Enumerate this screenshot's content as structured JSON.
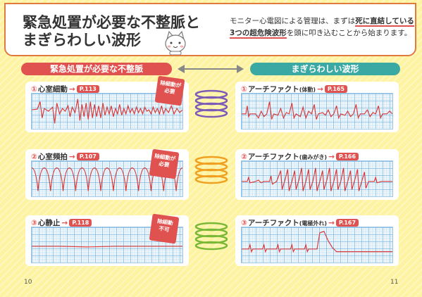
{
  "header": {
    "title_line1": "緊急処置が必要な不整脈と",
    "title_line2": "まぎらわしい波形",
    "intro_part1": "モニター心電図による管理は、まずは",
    "intro_highlight": "死に直結している3つの超危険波形",
    "intro_part2": "を頭に叩き込むことから始まります。"
  },
  "columns": {
    "left": "緊急処置が必要な不整脈",
    "right": "まぎらわしい波形"
  },
  "left_items": [
    {
      "num": "①",
      "name": "心室細動",
      "arrow": "→",
      "page": "P.113",
      "badge_line1": "除細動が",
      "badge_line2": "必要"
    },
    {
      "num": "②",
      "name": "心室頻拍",
      "arrow": "→",
      "page": "P.107",
      "badge_line1": "除細動が",
      "badge_line2": "必要"
    },
    {
      "num": "③",
      "name": "心静止",
      "arrow": "→",
      "page": "P.118",
      "badge_line1": "除細動",
      "badge_line2": "不可"
    }
  ],
  "right_items": [
    {
      "num": "①",
      "name": "アーチファクト",
      "sub": "(体動)",
      "arrow": "→",
      "page": "P.165"
    },
    {
      "num": "②",
      "name": "アーチファクト",
      "sub": "(歯みがき)",
      "arrow": "→",
      "page": "P.166"
    },
    {
      "num": "③",
      "name": "アーチファクト",
      "sub": "(電極外れ)",
      "arrow": "→",
      "page": "P.167"
    }
  ],
  "ring_colors": [
    "#7b5bb5",
    "#f0a020",
    "#7ab838"
  ],
  "accent": "#e0524f",
  "teal": "#3aa9a4",
  "page_left": "10",
  "page_right": "11"
}
